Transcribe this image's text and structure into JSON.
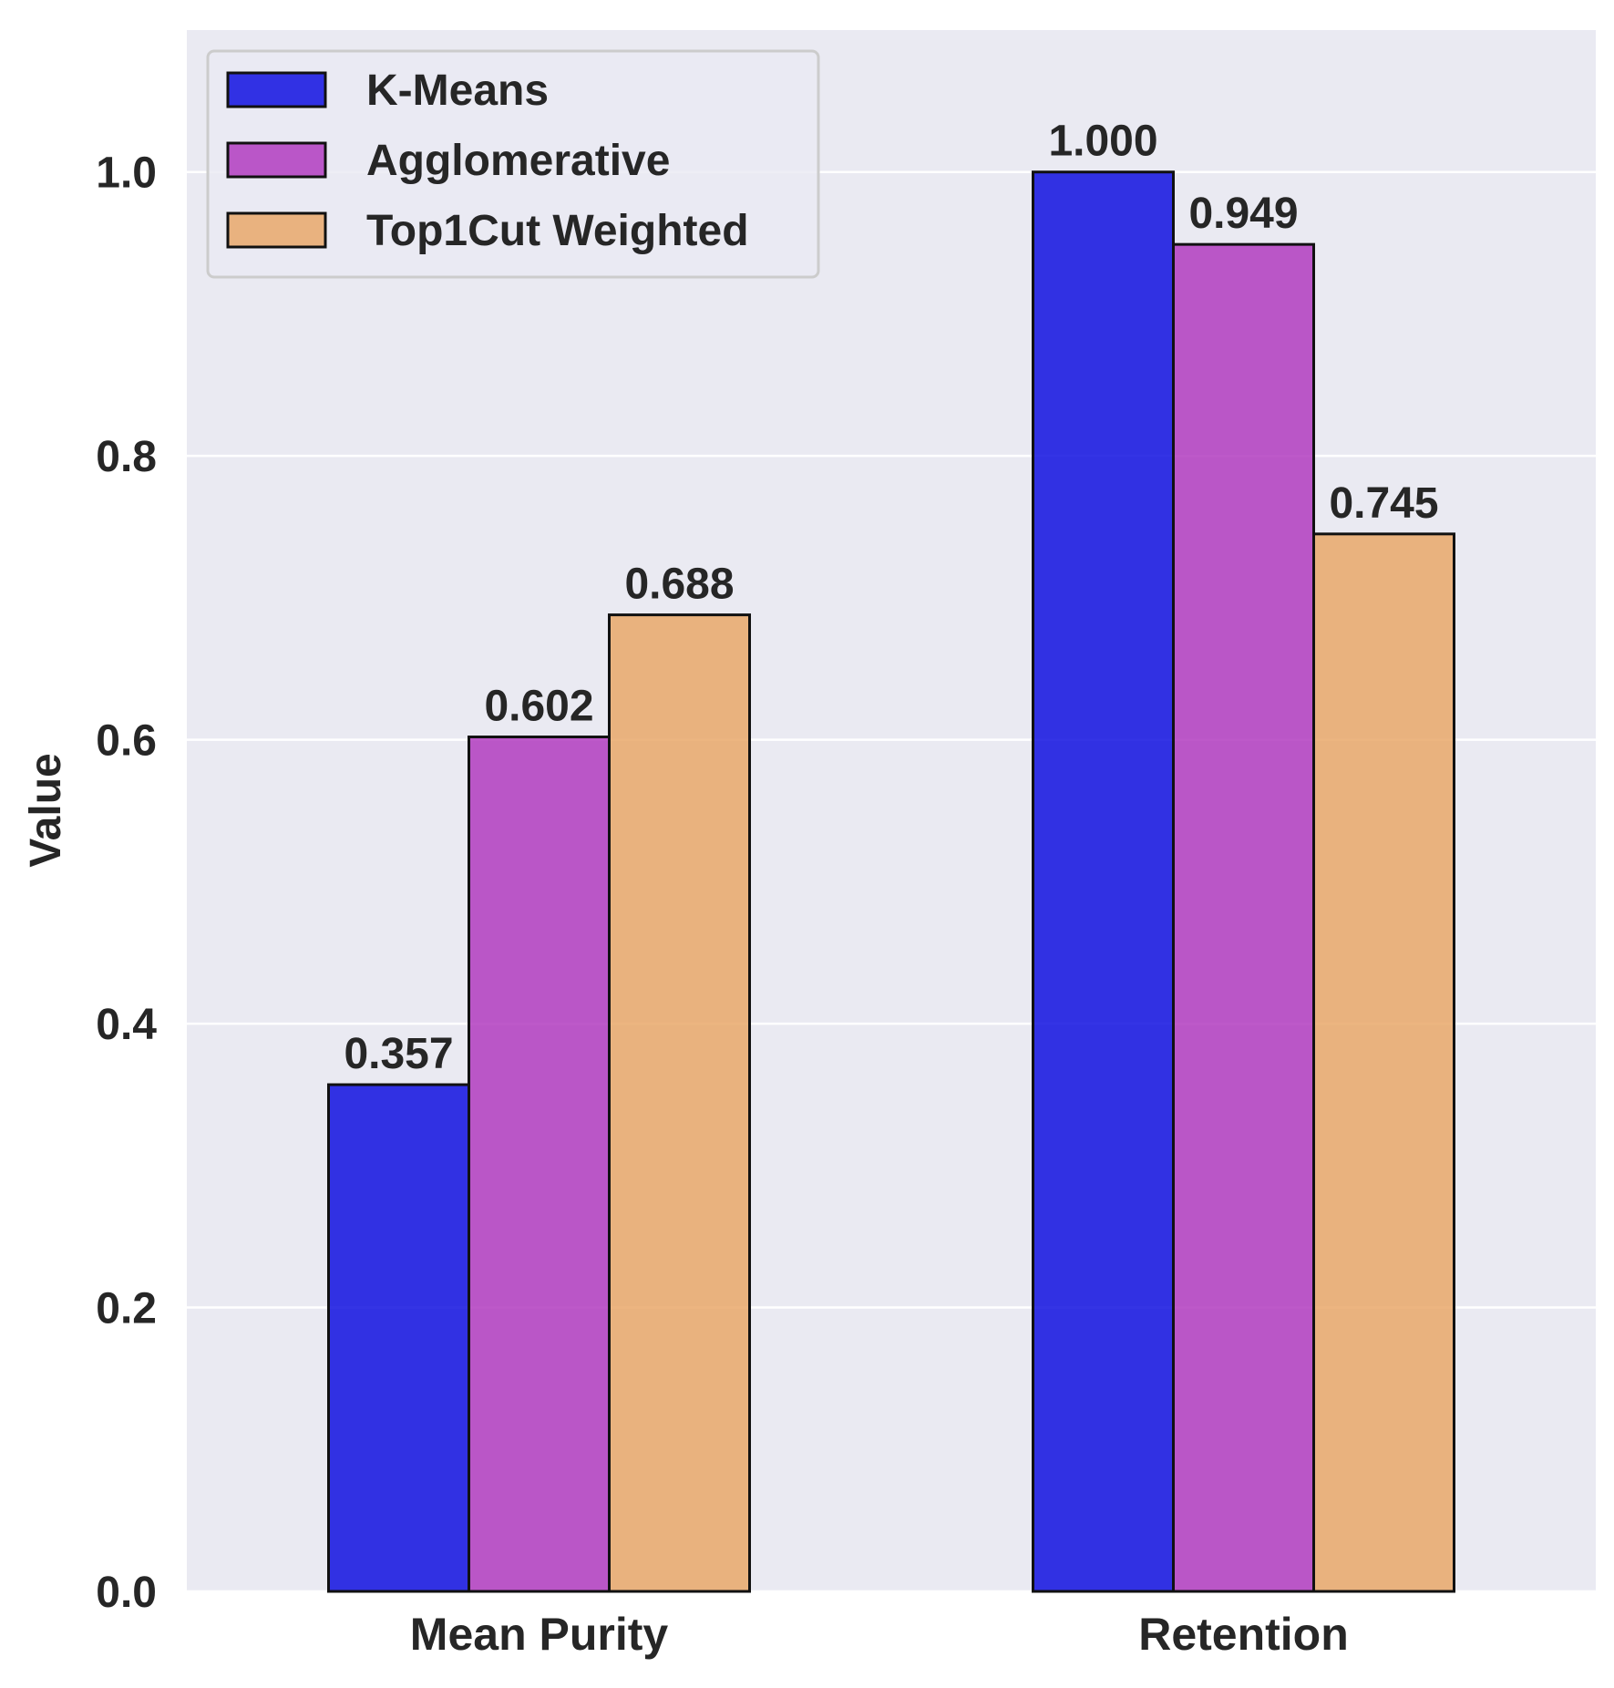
{
  "chart_data": {
    "type": "bar",
    "title": "",
    "xlabel": "",
    "ylabel": "Value",
    "categories": [
      "Mean Purity",
      "Retention"
    ],
    "series": [
      {
        "name": "K-Means",
        "values": [
          0.357,
          1.0
        ],
        "color": "#1010e0",
        "labels": [
          "0.357",
          "1.000"
        ]
      },
      {
        "name": "Agglomerative",
        "values": [
          0.602,
          0.949
        ],
        "color": "#b23cbf",
        "labels": [
          "0.602",
          "0.949"
        ]
      },
      {
        "name": "Top1Cut Weighted",
        "values": [
          0.688,
          0.745
        ],
        "color": "#e9a86a",
        "labels": [
          "0.688",
          "0.745"
        ]
      }
    ],
    "ylim": [
      0,
      1.1
    ],
    "yticks": [
      0.0,
      0.2,
      0.4,
      0.6,
      0.8,
      1.0
    ],
    "ytick_labels": [
      "0.0",
      "0.2",
      "0.4",
      "0.6",
      "0.8",
      "1.0"
    ],
    "grid": true,
    "legend_position": "top-left",
    "background_color": "#eaeaf2",
    "grid_color": "#ffffff",
    "bar_edge_color": "#111111"
  }
}
